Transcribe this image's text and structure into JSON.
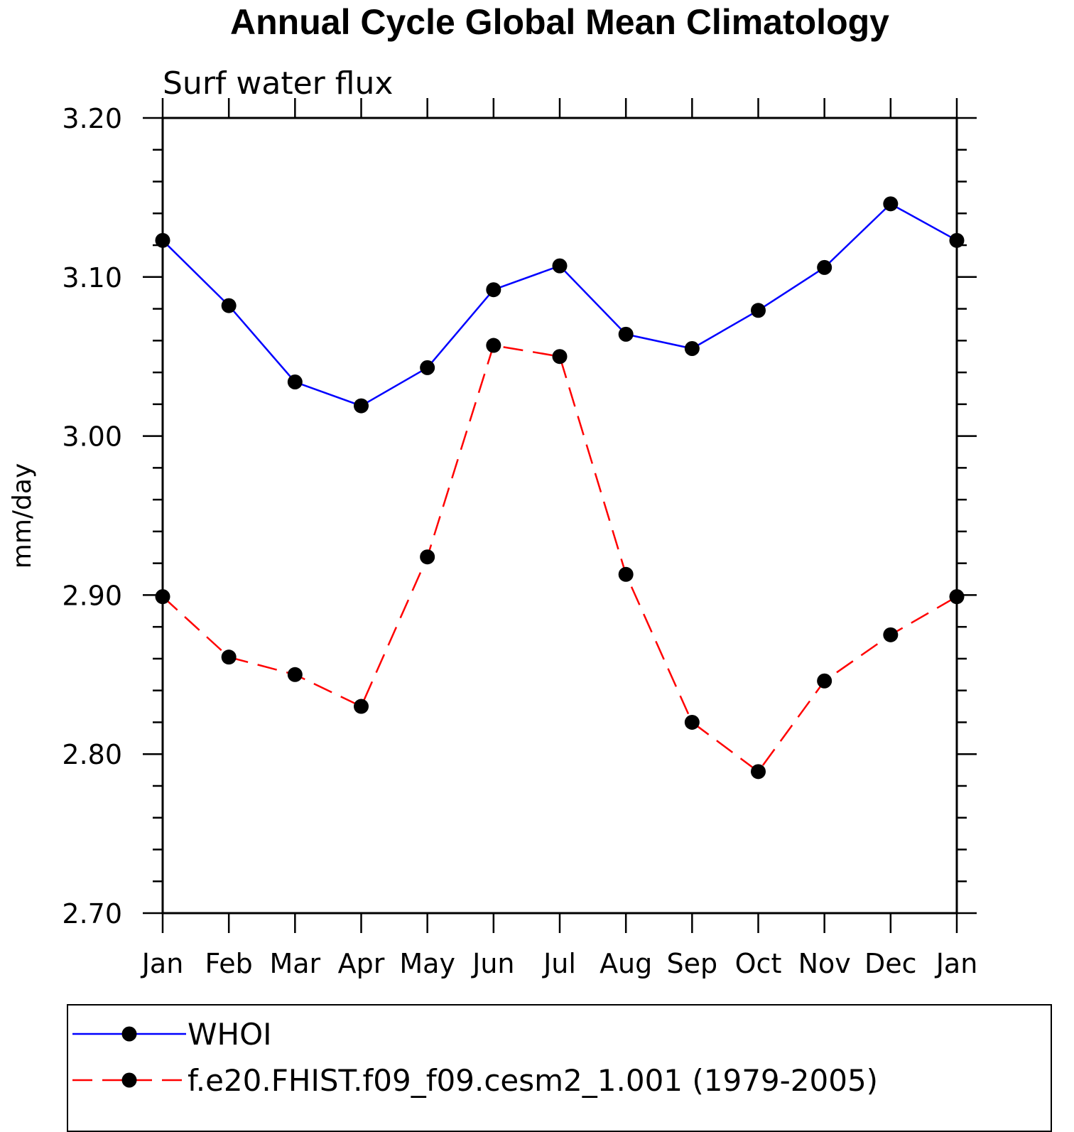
{
  "chart_data": {
    "type": "line",
    "title": "Annual Cycle Global Mean Climatology",
    "subtitle": "Surf water flux",
    "xlabel": "",
    "ylabel": "mm/day",
    "categories": [
      "Jan",
      "Feb",
      "Mar",
      "Apr",
      "May",
      "Jun",
      "Jul",
      "Aug",
      "Sep",
      "Oct",
      "Nov",
      "Dec",
      "Jan"
    ],
    "ylim": [
      2.7,
      3.2
    ],
    "yticks": [
      "2.70",
      "2.80",
      "2.90",
      "3.00",
      "3.10",
      "3.20"
    ],
    "ytick_values": [
      2.7,
      2.8,
      2.9,
      3.0,
      3.1,
      3.2
    ],
    "grid": false,
    "legend_position": "bottom",
    "series": [
      {
        "name": "WHOI",
        "color": "#0000ff",
        "dash": "solid",
        "marker": "filled-circle",
        "values": [
          3.123,
          3.082,
          3.034,
          3.019,
          3.043,
          3.092,
          3.107,
          3.064,
          3.055,
          3.079,
          3.106,
          3.146,
          3.123
        ]
      },
      {
        "name": "f.e20.FHIST.f09_f09.cesm2_1.001 (1979-2005)",
        "color": "#ff0000",
        "dash": "dashed",
        "marker": "filled-circle",
        "values": [
          2.899,
          2.861,
          2.85,
          2.83,
          2.924,
          3.057,
          3.05,
          2.913,
          2.82,
          2.789,
          2.846,
          2.875,
          2.899
        ]
      }
    ]
  }
}
